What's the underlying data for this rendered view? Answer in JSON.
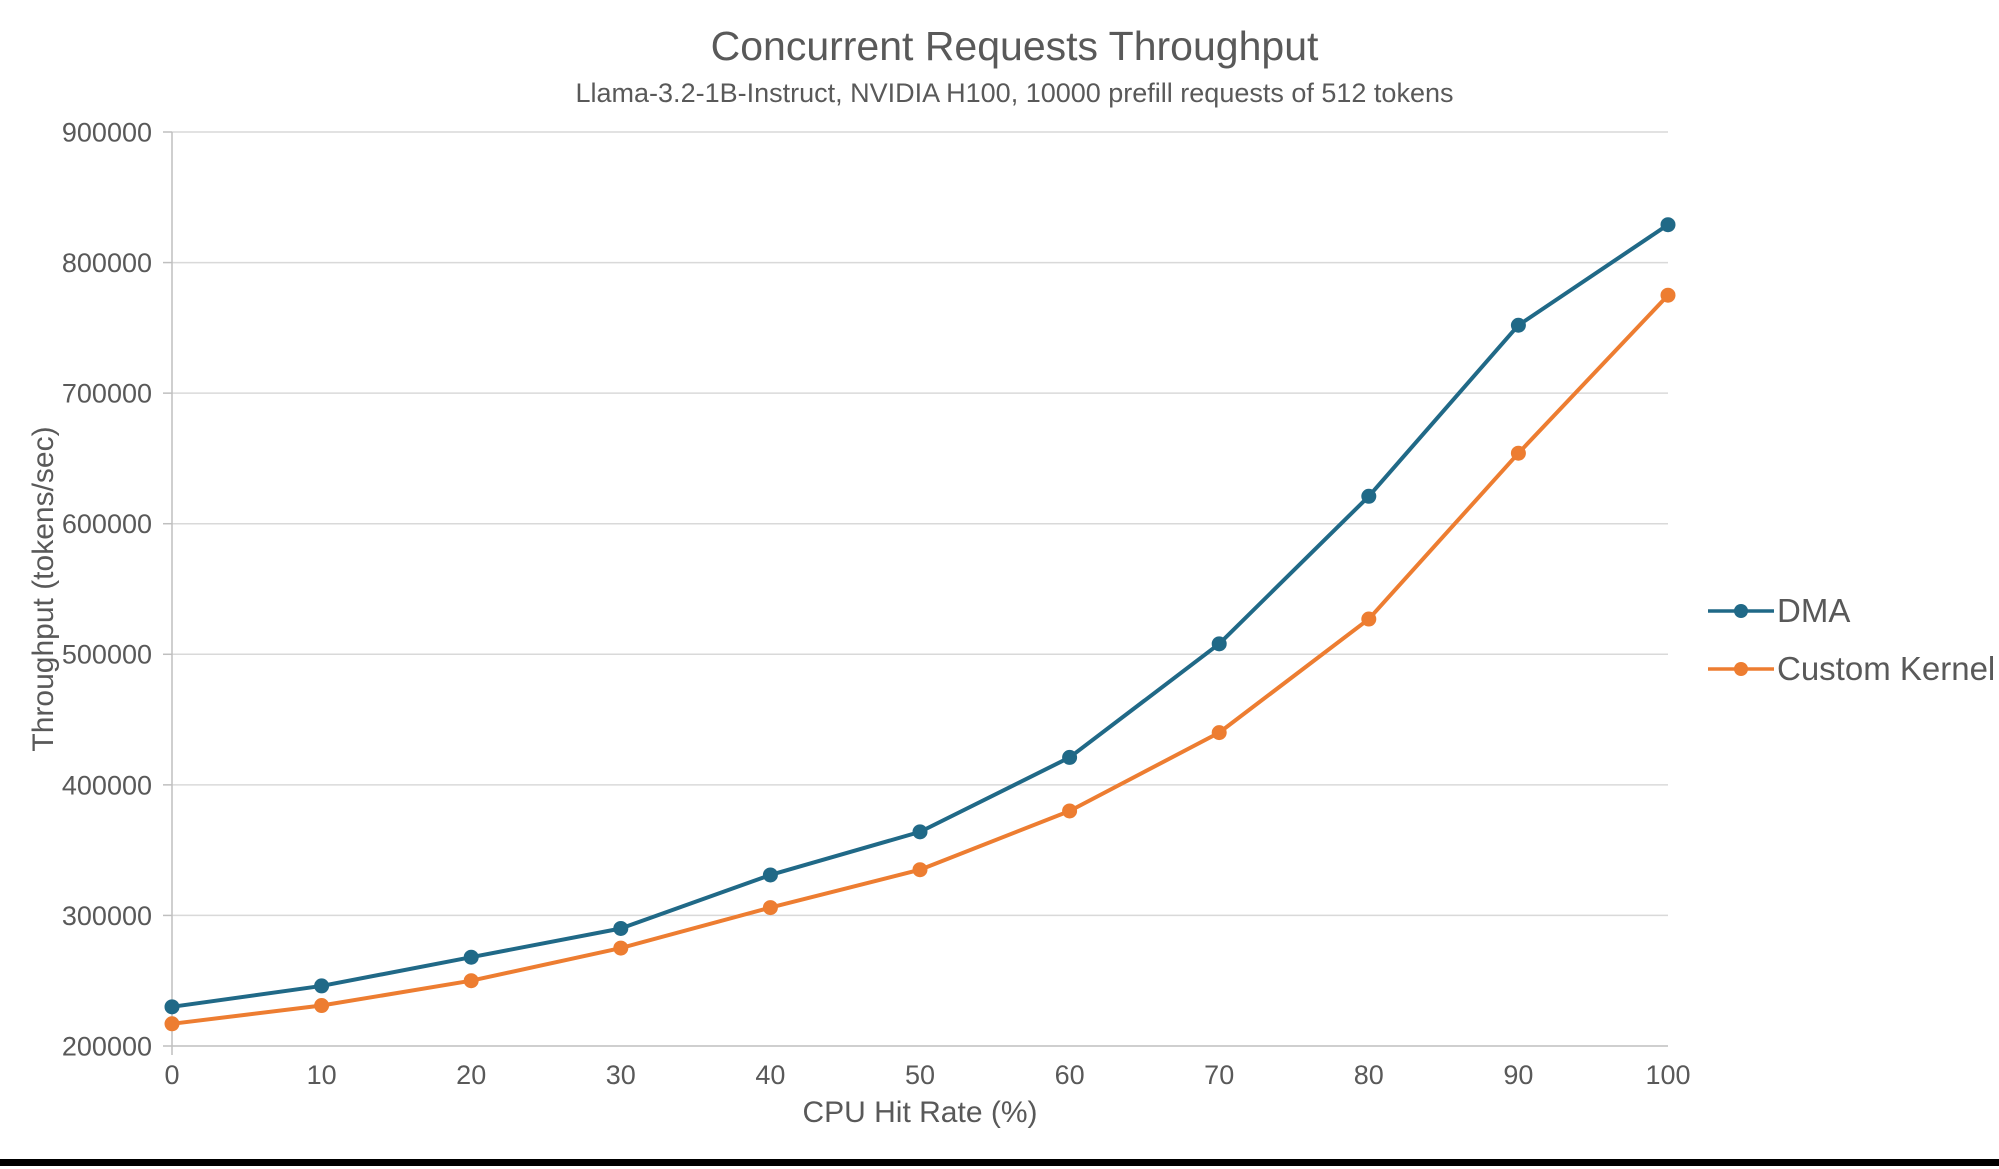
{
  "page": {
    "background": "#ffffff",
    "bottom_bar_color": "#000000"
  },
  "chart_data": {
    "type": "line",
    "title": "Concurrent Requests Throughput",
    "subtitle": "Llama-3.2-1B-Instruct, NVIDIA H100, 10000 prefill requests of 512 tokens",
    "xlabel": "CPU Hit Rate (%)",
    "ylabel": "Throughput (tokens/sec)",
    "x": [
      0,
      10,
      20,
      30,
      40,
      50,
      60,
      70,
      80,
      90,
      100
    ],
    "series": [
      {
        "name": "DMA",
        "color": "#206987",
        "values": [
          230000,
          246000,
          268000,
          290000,
          331000,
          364000,
          421000,
          508000,
          621000,
          752000,
          829000
        ]
      },
      {
        "name": "Custom Kernel",
        "color": "#ED7D31",
        "values": [
          217000,
          231000,
          250000,
          275000,
          306000,
          335000,
          380000,
          440000,
          527000,
          654000,
          775000
        ]
      }
    ],
    "ylim": [
      200000,
      900000
    ],
    "ytick_step": 100000,
    "grid": "horizontal",
    "legend_position": "right",
    "styles": {
      "gridline_color": "#D9D9D9",
      "axis_color": "#BFBFBF",
      "tick_label_color": "#595959",
      "marker": "circle"
    }
  }
}
